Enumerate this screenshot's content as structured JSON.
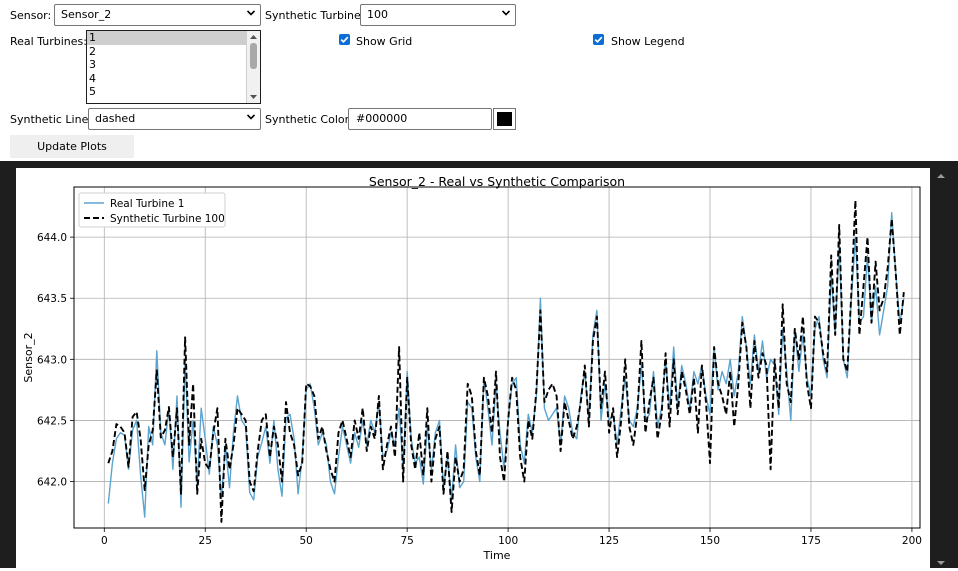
{
  "controls": {
    "sensor_label": "Sensor:",
    "sensor_value": "Sensor_2",
    "synthetic_turbine_label": "Synthetic Turbine:",
    "synthetic_turbine_value": "100",
    "real_turbines_label": "Real Turbines:",
    "real_turbines_options": [
      "1",
      "2",
      "3",
      "4",
      "5"
    ],
    "real_turbines_selected": "1",
    "show_grid_label": "Show Grid",
    "show_grid_checked": true,
    "show_legend_label": "Show Legend",
    "show_legend_checked": true,
    "synthetic_line_label": "Synthetic Line:",
    "synthetic_line_value": "dashed",
    "synthetic_color_label": "Synthetic Color:",
    "synthetic_color_value": "#000000",
    "update_button_label": "Update Plots"
  },
  "colors": {
    "real_line": "#5ba4cf",
    "synthetic_line": "#000000",
    "checkbox_accent": "#0b6ed6",
    "dark_frame": "#1e1e1e"
  },
  "chart_data": {
    "type": "line",
    "title": "Sensor_2 - Real vs Synthetic Comparison",
    "xlabel": "Time",
    "ylabel": "Sensor_2",
    "xlim": [
      -7.5,
      202
    ],
    "ylim": [
      641.62,
      644.41
    ],
    "xticks": [
      0,
      25,
      50,
      75,
      100,
      125,
      150,
      175,
      200
    ],
    "yticks": [
      642.0,
      642.5,
      643.0,
      643.5,
      644.0
    ],
    "ytick_labels": [
      "642.0",
      "642.5",
      "643.0",
      "643.5",
      "644.0"
    ],
    "grid": true,
    "legend_position": "top-left",
    "x_start": 1,
    "series": [
      {
        "name": "Real Turbine 1",
        "style": "solid",
        "values": [
          641.82,
          642.15,
          642.35,
          642.4,
          642.38,
          642.1,
          642.42,
          642.5,
          642.05,
          641.71,
          642.45,
          642.3,
          643.07,
          642.4,
          642.3,
          642.6,
          642.1,
          642.7,
          641.79,
          643.0,
          642.16,
          642.5,
          641.98,
          642.6,
          642.35,
          642.06,
          642.45,
          642.3,
          641.86,
          642.3,
          641.95,
          642.41,
          642.7,
          642.5,
          642.45,
          641.91,
          641.85,
          642.2,
          642.32,
          642.45,
          642.15,
          642.5,
          642.1,
          641.88,
          642.52,
          642.55,
          642.35,
          641.9,
          642.2,
          642.75,
          642.8,
          642.6,
          642.3,
          642.4,
          642.3,
          642.0,
          641.9,
          642.2,
          642.45,
          642.3,
          642.15,
          642.4,
          642.28,
          642.5,
          642.3,
          642.5,
          642.4,
          642.65,
          642.2,
          642.25,
          642.4,
          642.3,
          642.6,
          642.1,
          642.9,
          642.35,
          642.15,
          642.2,
          641.98,
          642.45,
          642.1,
          642.4,
          642.5,
          641.95,
          642.2,
          641.85,
          642.3,
          641.95,
          642.0,
          642.65,
          642.6,
          642.2,
          642.0,
          642.85,
          642.6,
          642.3,
          642.8,
          642.4,
          642.1,
          642.5,
          642.8,
          642.85,
          642.3,
          642.15,
          642.55,
          642.4,
          642.7,
          643.5,
          642.6,
          642.5,
          642.55,
          642.6,
          642.3,
          642.7,
          642.6,
          642.4,
          642.35,
          642.7,
          642.9,
          642.5,
          643.2,
          643.4,
          642.5,
          642.8,
          642.5,
          642.55,
          642.3,
          642.6,
          642.85,
          642.5,
          642.45,
          642.6,
          642.95,
          642.5,
          642.55,
          642.9,
          642.45,
          642.6,
          643.0,
          642.6,
          643.1,
          642.6,
          642.95,
          642.8,
          642.6,
          642.9,
          642.8,
          642.95,
          642.7,
          642.55,
          643.1,
          642.75,
          642.9,
          642.8,
          643.0,
          642.7,
          642.9,
          643.35,
          643.1,
          642.8,
          643.2,
          642.9,
          643.15,
          642.85,
          643.0,
          642.95,
          642.55,
          643.25,
          642.9,
          642.5,
          643.25,
          642.9,
          643.2,
          642.85,
          642.7,
          643.25,
          643.35,
          643.0,
          642.85,
          643.7,
          643.2,
          643.95,
          643.0,
          642.85,
          643.5,
          644.0,
          643.3,
          643.35,
          643.85,
          643.3,
          643.6,
          643.2,
          643.4,
          643.6,
          644.2,
          643.7,
          643.3,
          643.5
        ]
      },
      {
        "name": "Synthetic Turbine 100",
        "style": "dashed",
        "values": [
          642.15,
          642.25,
          642.47,
          642.45,
          642.4,
          642.12,
          642.53,
          642.57,
          642.35,
          641.93,
          642.3,
          642.42,
          642.91,
          642.36,
          642.42,
          642.61,
          642.2,
          642.6,
          641.9,
          643.18,
          642.3,
          642.8,
          641.9,
          642.35,
          642.15,
          642.1,
          642.4,
          642.6,
          641.67,
          642.35,
          642.1,
          642.3,
          642.6,
          642.55,
          642.5,
          642.0,
          641.92,
          642.25,
          642.5,
          642.55,
          642.2,
          642.45,
          642.3,
          642.0,
          642.65,
          642.4,
          642.3,
          642.05,
          642.15,
          642.8,
          642.78,
          642.7,
          642.35,
          642.45,
          642.25,
          642.1,
          642.0,
          642.4,
          642.5,
          642.35,
          642.2,
          642.5,
          642.35,
          642.6,
          642.25,
          642.45,
          642.35,
          642.7,
          642.1,
          642.3,
          642.45,
          642.2,
          643.1,
          642.0,
          642.85,
          642.3,
          642.1,
          642.4,
          642.05,
          642.6,
          642.0,
          642.35,
          642.45,
          641.9,
          642.25,
          641.75,
          642.2,
          642.0,
          642.1,
          642.8,
          642.7,
          642.25,
          642.05,
          642.85,
          642.7,
          642.4,
          642.9,
          642.2,
          642.0,
          642.5,
          642.85,
          642.75,
          642.2,
          642.0,
          642.5,
          642.35,
          642.75,
          643.4,
          642.65,
          642.75,
          642.8,
          642.7,
          642.25,
          642.65,
          642.5,
          642.35,
          642.45,
          642.65,
          642.95,
          642.45,
          643.15,
          643.35,
          642.6,
          642.9,
          642.4,
          642.6,
          642.2,
          642.5,
          643.0,
          642.45,
          642.3,
          642.55,
          643.15,
          642.4,
          642.65,
          642.85,
          642.35,
          642.55,
          643.05,
          642.45,
          643.0,
          642.55,
          642.9,
          642.75,
          642.55,
          642.85,
          642.4,
          642.95,
          642.65,
          642.15,
          643.1,
          642.8,
          642.7,
          642.55,
          642.9,
          642.45,
          642.8,
          643.3,
          643.1,
          642.6,
          643.15,
          642.85,
          643.05,
          642.95,
          642.1,
          643.0,
          642.6,
          643.45,
          642.8,
          642.65,
          643.25,
          643.0,
          643.35,
          642.8,
          642.6,
          643.35,
          643.3,
          643.05,
          642.9,
          643.85,
          643.2,
          644.1,
          643.0,
          642.9,
          643.55,
          644.3,
          643.2,
          643.6,
          644.0,
          643.3,
          643.8,
          643.4,
          643.5,
          643.75,
          644.15,
          643.7,
          643.2,
          643.55
        ]
      }
    ]
  }
}
